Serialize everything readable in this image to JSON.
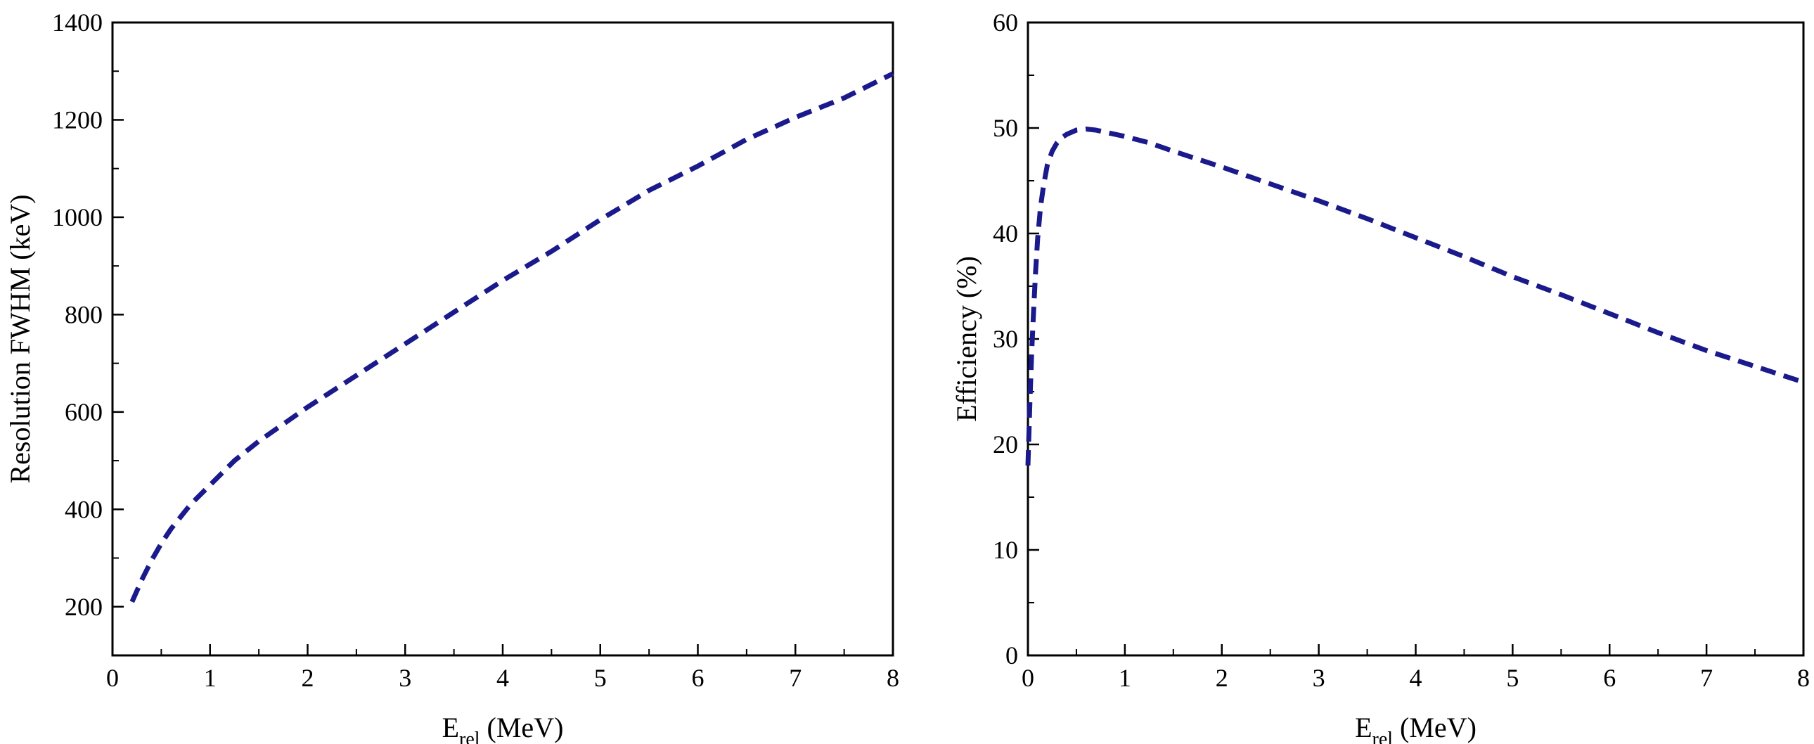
{
  "chart_data": [
    {
      "type": "line",
      "xlabel": "E",
      "xlabel_sub": "rel",
      "xlabel_unit": " (MeV)",
      "ylabel": "Resolution FWHM (keV)",
      "xlim": [
        0,
        8
      ],
      "ylim": [
        100,
        1400
      ],
      "xticks": [
        "0",
        "1",
        "2",
        "3",
        "4",
        "5",
        "6",
        "7",
        "8"
      ],
      "yticks": [
        "200",
        "400",
        "600",
        "800",
        "1000",
        "1200",
        "1400"
      ],
      "grid": false,
      "line_style": "dashed",
      "color": "#1a1a8c",
      "series": [
        {
          "x": [
            0.2,
            0.3,
            0.4,
            0.5,
            0.6,
            0.8,
            1.0,
            1.25,
            1.5,
            1.75,
            2.0,
            2.5,
            3.0,
            3.5,
            4.0,
            4.5,
            5.0,
            5.5,
            6.0,
            6.5,
            7.0,
            7.5,
            8.0
          ],
          "y": [
            210,
            255,
            295,
            330,
            360,
            410,
            450,
            500,
            540,
            575,
            610,
            675,
            740,
            805,
            870,
            930,
            995,
            1055,
            1105,
            1160,
            1205,
            1245,
            1295
          ]
        }
      ]
    },
    {
      "type": "line",
      "xlabel": "E",
      "xlabel_sub": "rel",
      "xlabel_unit": " (MeV)",
      "ylabel": "Efficiency (%)",
      "xlim": [
        0,
        8
      ],
      "ylim": [
        0,
        60
      ],
      "xticks": [
        "0",
        "1",
        "2",
        "3",
        "4",
        "5",
        "6",
        "7",
        "8"
      ],
      "yticks": [
        "0",
        "10",
        "20",
        "30",
        "40",
        "50",
        "60"
      ],
      "grid": false,
      "line_style": "dashed",
      "color": "#1a1a8c",
      "series": [
        {
          "x": [
            0.0,
            0.02,
            0.04,
            0.06,
            0.08,
            0.1,
            0.13,
            0.16,
            0.2,
            0.25,
            0.3,
            0.35,
            0.4,
            0.5,
            0.6,
            0.7,
            0.8,
            1.0,
            1.25,
            1.5,
            2.0,
            2.5,
            3.0,
            3.5,
            4.0,
            4.5,
            5.0,
            5.5,
            6.0,
            6.5,
            7.0,
            7.5,
            8.0
          ],
          "y": [
            18,
            24,
            29,
            33,
            36.5,
            39.5,
            42.5,
            44.5,
            46.5,
            47.8,
            48.6,
            49.1,
            49.4,
            49.8,
            49.9,
            49.8,
            49.6,
            49.2,
            48.6,
            47.8,
            46.3,
            44.7,
            43.1,
            41.4,
            39.6,
            37.8,
            35.9,
            34.2,
            32.4,
            30.6,
            28.9,
            27.4,
            25.9
          ]
        }
      ]
    }
  ]
}
